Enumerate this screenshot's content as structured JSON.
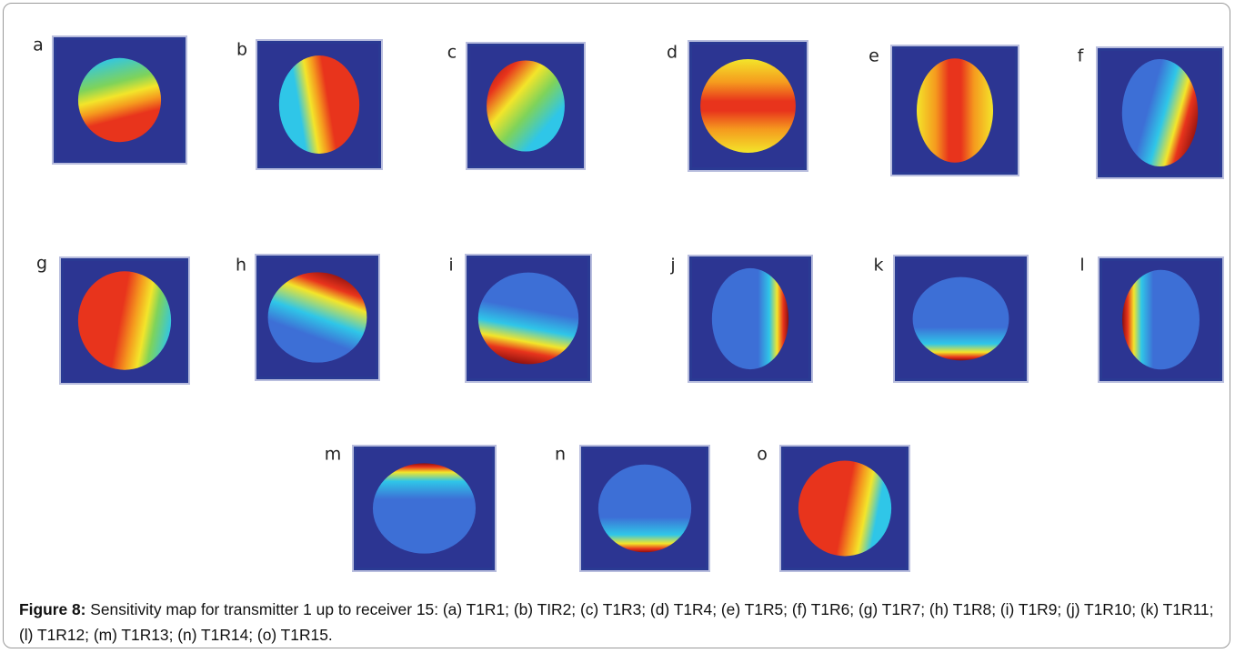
{
  "figure": {
    "panels": [
      "a",
      "b",
      "c",
      "d",
      "e",
      "f",
      "g",
      "h",
      "i",
      "j",
      "k",
      "l",
      "m",
      "n",
      "o"
    ],
    "caption": {
      "label": "Figure 8:",
      "text": "Sensitivity map for transmitter 1 up to receiver 15: (a) T1R1; (b) TIR2; (c) T1R3; (d) T1R4; (e) T1R5; (f) T1R6; (g) T1R7; (h) T1R8; (i) T1R9; (j) T1R10; (k) T1R11; (l) T1R12; (m) T1R13; (n) T1R14; (o) T1R15."
    }
  }
}
